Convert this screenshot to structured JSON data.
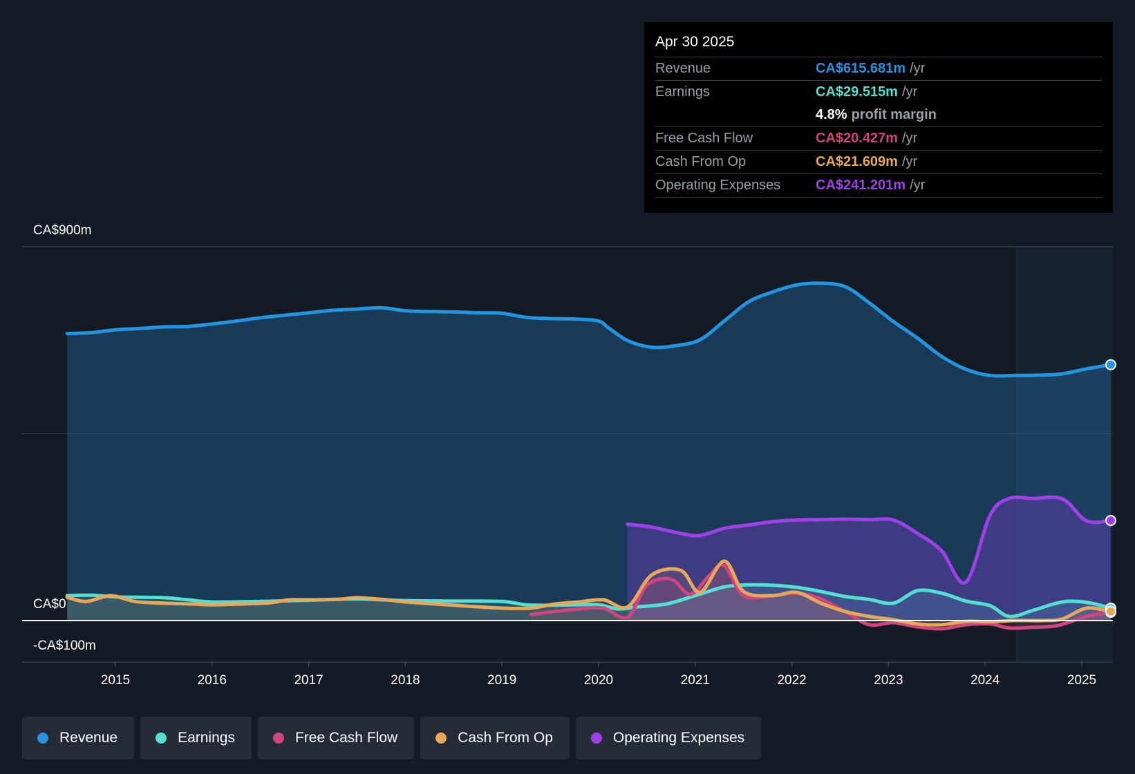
{
  "chart_data": {
    "type": "area",
    "y_unit": "CA$",
    "ylim": [
      -100,
      900
    ],
    "y_ticks": [
      {
        "value": 900,
        "label": "CA$900m"
      },
      {
        "value": 0,
        "label": "CA$0"
      },
      {
        "value": -100,
        "label": "-CA$100m"
      }
    ],
    "x_range": [
      2014.0,
      2025.3
    ],
    "x_ticks": [
      {
        "value": 2015,
        "label": "2015"
      },
      {
        "value": 2016,
        "label": "2016"
      },
      {
        "value": 2017,
        "label": "2017"
      },
      {
        "value": 2018,
        "label": "2018"
      },
      {
        "value": 2019,
        "label": "2019"
      },
      {
        "value": 2020,
        "label": "2020"
      },
      {
        "value": 2021,
        "label": "2021"
      },
      {
        "value": 2022,
        "label": "2022"
      },
      {
        "value": 2023,
        "label": "2023"
      },
      {
        "value": 2024,
        "label": "2024"
      },
      {
        "value": 2025,
        "label": "2025"
      }
    ],
    "highlight_start": 2024.33,
    "series": [
      {
        "name": "Revenue",
        "color": "#2394df",
        "x": [
          2014.5,
          2014.75,
          2015.0,
          2015.25,
          2015.5,
          2015.75,
          2016.0,
          2016.25,
          2016.5,
          2016.75,
          2017.0,
          2017.25,
          2017.5,
          2017.75,
          2018.0,
          2018.25,
          2018.5,
          2018.75,
          2019.0,
          2019.25,
          2019.5,
          2019.75,
          2020.0,
          2020.1,
          2020.3,
          2020.55,
          2020.8,
          2021.05,
          2021.3,
          2021.55,
          2021.8,
          2022.05,
          2022.3,
          2022.55,
          2022.8,
          2023.05,
          2023.3,
          2023.55,
          2023.8,
          2024.05,
          2024.33,
          2024.6,
          2024.8,
          2025.05,
          2025.3
        ],
        "values": [
          691,
          693,
          700,
          703,
          707,
          708,
          714,
          721,
          729,
          735,
          741,
          747,
          750,
          753,
          746,
          744,
          743,
          741,
          740,
          730,
          727,
          726,
          721,
          705,
          674,
          658,
          662,
          676,
          721,
          767,
          791,
          808,
          812,
          804,
          765,
          720,
          680,
          636,
          605,
          590,
          590,
          591,
          594,
          606,
          616
        ]
      },
      {
        "name": "Earnings",
        "color": "#53dfd2",
        "x": [
          2014.5,
          2014.75,
          2015.0,
          2015.25,
          2015.5,
          2015.75,
          2016.0,
          2016.5,
          2017.0,
          2017.5,
          2018.0,
          2018.5,
          2019.0,
          2019.25,
          2019.5,
          2019.75,
          2020.0,
          2020.2,
          2020.4,
          2020.7,
          2021.0,
          2021.3,
          2021.55,
          2021.8,
          2022.05,
          2022.3,
          2022.55,
          2022.8,
          2023.05,
          2023.3,
          2023.55,
          2023.8,
          2024.05,
          2024.25,
          2024.5,
          2024.8,
          2025.05,
          2025.3
        ],
        "values": [
          60,
          61,
          57,
          56,
          55,
          50,
          45,
          46,
          49,
          52,
          48,
          47,
          46,
          38,
          37,
          38,
          38,
          28,
          33,
          40,
          60,
          81,
          86,
          85,
          80,
          70,
          58,
          51,
          42,
          72,
          66,
          47,
          36,
          10,
          25,
          45,
          44,
          30
        ]
      },
      {
        "name": "Free Cash Flow",
        "color": "#d1457e",
        "x": [
          2019.3,
          2019.55,
          2019.8,
          2020.05,
          2020.3,
          2020.5,
          2020.75,
          2020.95,
          2021.15,
          2021.3,
          2021.5,
          2021.8,
          2022.05,
          2022.3,
          2022.55,
          2022.8,
          2023.05,
          2023.3,
          2023.55,
          2023.8,
          2024.05,
          2024.25,
          2024.5,
          2024.75,
          2025.05,
          2025.3
        ],
        "values": [
          15,
          22,
          28,
          30,
          8,
          85,
          100,
          63,
          110,
          133,
          60,
          60,
          66,
          52,
          22,
          -10,
          -5,
          -15,
          -20,
          -10,
          -8,
          -18,
          -16,
          -12,
          10,
          20
        ]
      },
      {
        "name": "Cash From Op",
        "color": "#e7a85a",
        "x": [
          2014.5,
          2014.7,
          2014.95,
          2015.2,
          2015.5,
          2015.8,
          2016.0,
          2016.3,
          2016.6,
          2016.8,
          2017.0,
          2017.3,
          2017.5,
          2017.8,
          2018.0,
          2018.5,
          2019.0,
          2019.3,
          2019.55,
          2019.8,
          2020.05,
          2020.3,
          2020.55,
          2020.85,
          2021.05,
          2021.3,
          2021.5,
          2021.8,
          2022.05,
          2022.3,
          2022.55,
          2022.8,
          2023.05,
          2023.3,
          2023.55,
          2023.8,
          2024.05,
          2024.3,
          2024.6,
          2024.8,
          2025.05,
          2025.3
        ],
        "values": [
          56,
          46,
          60,
          46,
          42,
          40,
          38,
          40,
          43,
          50,
          50,
          51,
          55,
          50,
          45,
          37,
          30,
          30,
          40,
          45,
          50,
          33,
          110,
          121,
          68,
          143,
          70,
          60,
          68,
          42,
          22,
          10,
          2,
          -8,
          -10,
          -2,
          -3,
          0,
          0,
          4,
          30,
          22
        ]
      },
      {
        "name": "Operating Expenses",
        "color": "#a040e8",
        "x": [
          2020.3,
          2020.55,
          2020.85,
          2021.05,
          2021.3,
          2021.55,
          2021.8,
          2022.05,
          2022.3,
          2022.55,
          2022.8,
          2023.05,
          2023.3,
          2023.55,
          2023.8,
          2024.05,
          2024.25,
          2024.5,
          2024.8,
          2025.05,
          2025.3
        ],
        "values": [
          232,
          225,
          210,
          205,
          222,
          230,
          238,
          242,
          243,
          244,
          243,
          242,
          210,
          168,
          92,
          253,
          294,
          294,
          293,
          240,
          241
        ]
      }
    ]
  },
  "tooltip": {
    "date": "Apr 30 2025",
    "revenue": {
      "label": "Revenue",
      "value": "CA$615.681m",
      "unit": "/yr"
    },
    "earnings": {
      "label": "Earnings",
      "value": "CA$29.515m",
      "unit": "/yr"
    },
    "margin": {
      "value": "4.8%",
      "text": "profit margin"
    },
    "fcf": {
      "label": "Free Cash Flow",
      "value": "CA$20.427m",
      "unit": "/yr"
    },
    "cfo": {
      "label": "Cash From Op",
      "value": "CA$21.609m",
      "unit": "/yr"
    },
    "opex": {
      "label": "Operating Expenses",
      "value": "CA$241.201m",
      "unit": "/yr"
    }
  },
  "legend": [
    {
      "label": "Revenue",
      "color": "#2394df"
    },
    {
      "label": "Earnings",
      "color": "#53dfd2"
    },
    {
      "label": "Free Cash Flow",
      "color": "#d1457e"
    },
    {
      "label": "Cash From Op",
      "color": "#e7a85a"
    },
    {
      "label": "Operating Expenses",
      "color": "#a040e8"
    }
  ]
}
